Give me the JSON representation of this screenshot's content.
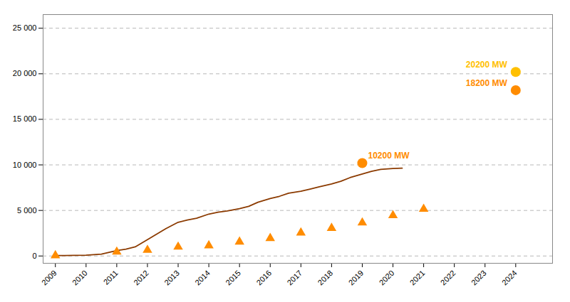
{
  "chart_data": {
    "type": "line",
    "series": [
      {
        "type": "line",
        "color": "#8B3A00",
        "x": [
          2009,
          2009.3,
          2009.6,
          2010,
          2010.5,
          2011,
          2011.3,
          2011.6,
          2012,
          2012.3,
          2012.6,
          2013,
          2013.3,
          2013.6,
          2014,
          2014.3,
          2014.6,
          2015,
          2015.3,
          2015.6,
          2016,
          2016.3,
          2016.6,
          2017,
          2017.3,
          2017.6,
          2018,
          2018.3,
          2018.6,
          2019,
          2019.3,
          2019.6,
          2020,
          2020.3
        ],
        "values": [
          50,
          55,
          60,
          80,
          200,
          600,
          750,
          1000,
          1800,
          2400,
          3000,
          3700,
          3950,
          4150,
          4600,
          4800,
          4950,
          5200,
          5450,
          5900,
          6300,
          6550,
          6900,
          7100,
          7350,
          7600,
          7900,
          8200,
          8600,
          9000,
          9300,
          9500,
          9600,
          9640
        ]
      },
      {
        "type": "scatter",
        "marker": "triangle",
        "color": "#FF8C00",
        "x": [
          2009,
          2011,
          2012,
          2013,
          2014,
          2015,
          2016,
          2017,
          2018,
          2019,
          2020,
          2021
        ],
        "values": [
          50,
          450,
          650,
          1000,
          1150,
          1550,
          1950,
          2550,
          3050,
          3650,
          4450,
          5150
        ]
      },
      {
        "type": "scatter",
        "marker": "circle",
        "data_labels": true,
        "colors": [
          "#FF8C00",
          "#FFC000",
          "#FF8C00"
        ],
        "x": [
          2019,
          2024,
          2024
        ],
        "values": [
          10200,
          20200,
          18200
        ],
        "value_labels": [
          "10200 MW",
          "20200 MW",
          "18200 MW"
        ]
      }
    ],
    "xlim": [
      2008.6,
      2025.2
    ],
    "xticks": [
      2009,
      2010,
      2011,
      2012,
      2013,
      2014,
      2015,
      2016,
      2017,
      2018,
      2019,
      2020,
      2021,
      2022,
      2023,
      2024
    ],
    "ylim": [
      -800,
      26500
    ],
    "yticks": [
      0,
      {
        "value": 5000,
        "label": "5 000"
      },
      {
        "value": 10000,
        "label": "10 000"
      },
      {
        "value": 15000,
        "label": "15 000"
      },
      {
        "value": 20000,
        "label": "20 000"
      },
      {
        "value": 25000,
        "label": "25 000"
      }
    ],
    "grid": true
  }
}
